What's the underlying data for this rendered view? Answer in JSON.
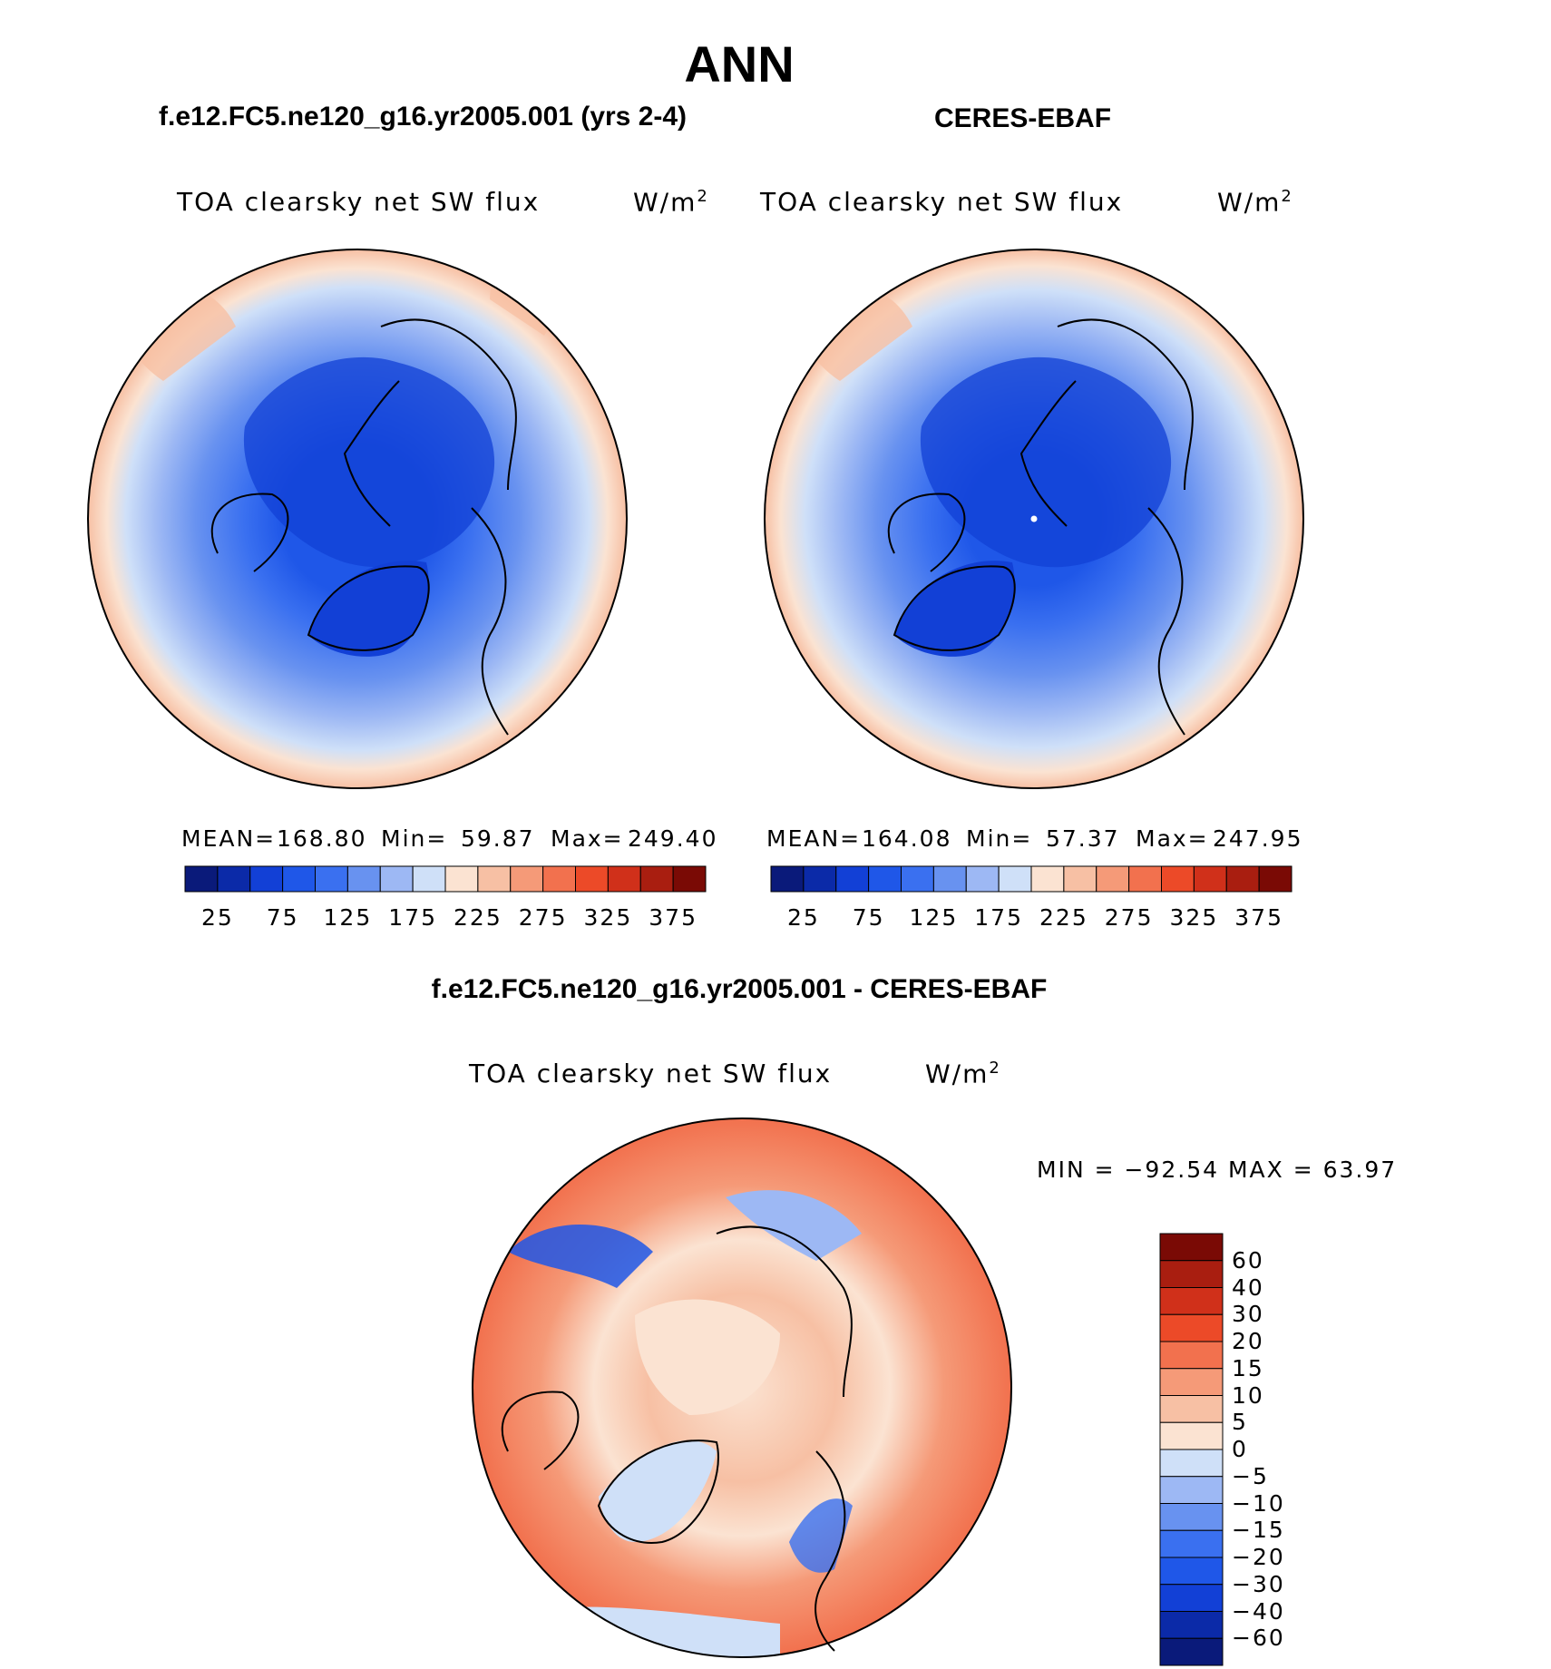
{
  "title": "ANN",
  "panels": {
    "model": {
      "title": "f.e12.FC5.ne120_g16.yr2005.001 (yrs 2-4)",
      "variable": "TOA clearsky net SW flux",
      "units": "W/m",
      "units_sup": "2",
      "mean_label": "MEAN=",
      "mean": "168.80",
      "min_label": "Min=",
      "min": "59.87",
      "max_label": "Max=",
      "max": "249.40"
    },
    "obs": {
      "title": "CERES-EBAF",
      "variable": "TOA clearsky net SW flux",
      "units": "W/m",
      "units_sup": "2",
      "mean_label": "MEAN=",
      "mean": "164.08",
      "min_label": "Min=",
      "min": "57.37",
      "max_label": "Max=",
      "max": "247.95"
    },
    "diff": {
      "title": "f.e12.FC5.ne120_g16.yr2005.001 - CERES-EBAF",
      "variable": "TOA clearsky net SW flux",
      "units": "W/m",
      "units_sup": "2",
      "minmax": "MIN = −92.54 MAX =   63.97"
    }
  },
  "chart_data": [
    {
      "type": "heatmap",
      "projection": "north polar stereographic",
      "title": "f.e12.FC5.ne120_g16.yr2005.001 (yrs 2-4)",
      "variable": "TOA clearsky net SW flux",
      "units": "W/m2",
      "mean": 168.8,
      "min": 59.87,
      "max": 249.4,
      "colorbar_tick_labels": [
        "25",
        "75",
        "125",
        "175",
        "225",
        "275",
        "325",
        "375"
      ],
      "colorbar_levels": [
        25,
        50,
        75,
        100,
        125,
        150,
        175,
        200,
        225,
        250,
        275,
        300,
        325,
        350,
        375
      ],
      "colorbar_colors": [
        "#0a1a7a",
        "#0b2aa8",
        "#1240d6",
        "#1f57e8",
        "#3a70f0",
        "#6892f0",
        "#9db8f4",
        "#cfe0f8",
        "#fbe3d2",
        "#f7c0a4",
        "#f59a78",
        "#f2714e",
        "#ec4a28",
        "#d0301a",
        "#a91e10",
        "#7a0a05"
      ]
    },
    {
      "type": "heatmap",
      "projection": "north polar stereographic",
      "title": "CERES-EBAF",
      "variable": "TOA clearsky net SW flux",
      "units": "W/m2",
      "mean": 164.08,
      "min": 57.37,
      "max": 247.95,
      "colorbar_tick_labels": [
        "25",
        "75",
        "125",
        "175",
        "225",
        "275",
        "325",
        "375"
      ],
      "colorbar_levels": [
        25,
        50,
        75,
        100,
        125,
        150,
        175,
        200,
        225,
        250,
        275,
        300,
        325,
        350,
        375
      ],
      "colorbar_colors": [
        "#0a1a7a",
        "#0b2aa8",
        "#1240d6",
        "#1f57e8",
        "#3a70f0",
        "#6892f0",
        "#9db8f4",
        "#cfe0f8",
        "#fbe3d2",
        "#f7c0a4",
        "#f59a78",
        "#f2714e",
        "#ec4a28",
        "#d0301a",
        "#a91e10",
        "#7a0a05"
      ]
    },
    {
      "type": "heatmap",
      "projection": "north polar stereographic",
      "title": "f.e12.FC5.ne120_g16.yr2005.001 - CERES-EBAF",
      "variable": "TOA clearsky net SW flux",
      "units": "W/m2",
      "min": -92.54,
      "max": 63.97,
      "colorbar_tick_labels": [
        "60",
        "40",
        "30",
        "20",
        "15",
        "10",
        "5",
        "0",
        "−5",
        "−10",
        "−15",
        "−20",
        "−30",
        "−40",
        "−60"
      ],
      "colorbar_levels": [
        60,
        40,
        30,
        20,
        15,
        10,
        5,
        0,
        -5,
        -10,
        -15,
        -20,
        -30,
        -40,
        -60
      ],
      "colorbar_colors": [
        "#7a0a05",
        "#a91e10",
        "#d0301a",
        "#ec4a28",
        "#f2714e",
        "#f59a78",
        "#f7c0a4",
        "#fbe3d2",
        "#cfe0f8",
        "#9db8f4",
        "#6892f0",
        "#3a70f0",
        "#1f57e8",
        "#1240d6",
        "#0b2aa8",
        "#0a1a7a"
      ]
    }
  ]
}
